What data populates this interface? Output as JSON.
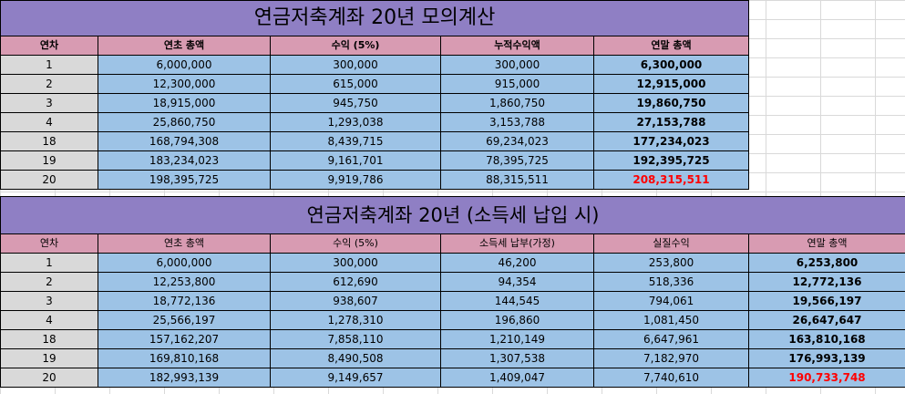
{
  "table1": {
    "title": "연금저축계좌 20년 모의계산",
    "headers": [
      "연차",
      "연초 총액",
      "수익 (5%)",
      "누적수익액",
      "연말 총액"
    ],
    "rows": [
      [
        "1",
        "6,000,000",
        "300,000",
        "300,000",
        "6,300,000"
      ],
      [
        "2",
        "12,300,000",
        "615,000",
        "915,000",
        "12,915,000"
      ],
      [
        "3",
        "18,915,000",
        "945,750",
        "1,860,750",
        "19,860,750"
      ],
      [
        "4",
        "25,860,750",
        "1,293,038",
        "3,153,788",
        "27,153,788"
      ],
      [
        "18",
        "168,794,308",
        "8,439,715",
        "69,234,023",
        "177,234,023"
      ],
      [
        "19",
        "183,234,023",
        "9,161,701",
        "78,395,725",
        "192,395,725"
      ],
      [
        "20",
        "198,395,725",
        "9,919,786",
        "88,315,511",
        "208,315,511"
      ]
    ]
  },
  "table2": {
    "title": "연금저축계좌 20년 (소득세 납입 시)",
    "headers": [
      "연차",
      "연초 총액",
      "수익 (5%)",
      "소득세 납부(가정)",
      "실질수익",
      "연말 총액"
    ],
    "rows": [
      [
        "1",
        "6,000,000",
        "300,000",
        "46,200",
        "253,800",
        "6,253,800"
      ],
      [
        "2",
        "12,253,800",
        "612,690",
        "94,354",
        "518,336",
        "12,772,136"
      ],
      [
        "3",
        "18,772,136",
        "938,607",
        "144,545",
        "794,061",
        "19,566,197"
      ],
      [
        "4",
        "25,566,197",
        "1,278,310",
        "196,860",
        "1,081,450",
        "26,647,647"
      ],
      [
        "18",
        "157,162,207",
        "7,858,110",
        "1,210,149",
        "6,647,961",
        "163,810,168"
      ],
      [
        "19",
        "169,810,168",
        "8,490,508",
        "1,307,538",
        "7,182,970",
        "176,993,139"
      ],
      [
        "20",
        "182,993,139",
        "9,149,657",
        "1,409,047",
        "7,740,610",
        "190,733,748"
      ]
    ]
  },
  "colors": {
    "title_bg": "#8f7fc4",
    "header_bg": "#d89bb2",
    "year_bg": "#d9d9d9",
    "value_bg": "#9dc3e6",
    "highlight_text": "#ff0000"
  }
}
